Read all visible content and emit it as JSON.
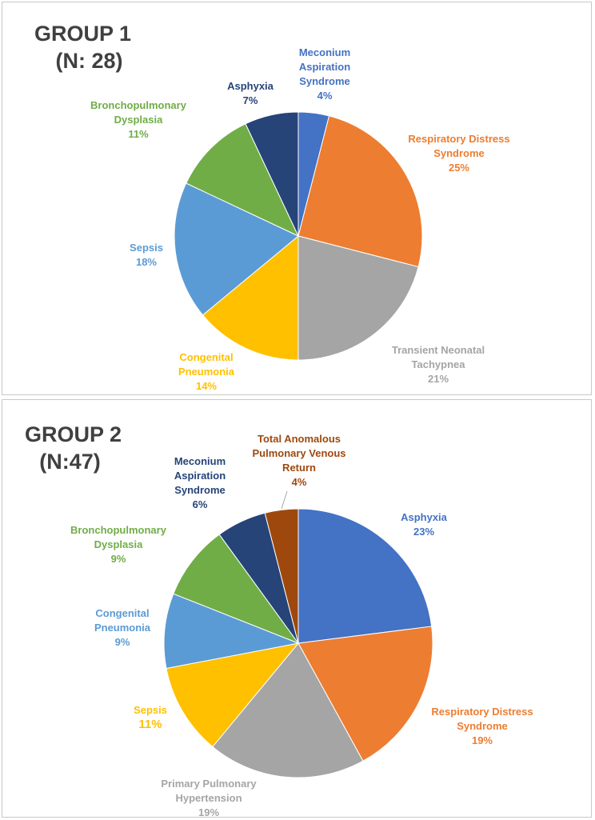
{
  "chart_data": [
    {
      "type": "pie",
      "title": "GROUP 1",
      "subtitle": "(N: 28)",
      "slices": [
        {
          "label_lines": [
            "Meconium",
            "Aspiration",
            "Syndrome"
          ],
          "pct_label": "4%",
          "value": 4,
          "color": "#4472C4"
        },
        {
          "label_lines": [
            "Respiratory Distress",
            "Syndrome"
          ],
          "pct_label": "25%",
          "value": 25,
          "color": "#ED7D31"
        },
        {
          "label_lines": [
            "Transient Neonatal",
            "Tachypnea"
          ],
          "pct_label": "21%",
          "value": 21,
          "color": "#A5A5A5"
        },
        {
          "label_lines": [
            "Congenital",
            "Pneumonia"
          ],
          "pct_label": "14%",
          "value": 14,
          "color": "#FFC000"
        },
        {
          "label_lines": [
            "Sepsis"
          ],
          "pct_label": "18%",
          "value": 18,
          "color": "#5B9BD5"
        },
        {
          "label_lines": [
            "Bronchopulmonary",
            "Dysplasia"
          ],
          "pct_label": "11%",
          "value": 11,
          "color": "#70AD47"
        },
        {
          "label_lines": [
            "Asphyxia"
          ],
          "pct_label": "7%",
          "value": 7,
          "color": "#264478"
        }
      ]
    },
    {
      "type": "pie",
      "title": "GROUP 2",
      "subtitle": "(N:47)",
      "slices": [
        {
          "label_lines": [
            "Asphyxia"
          ],
          "pct_label": "23%",
          "value": 23,
          "color": "#4472C4"
        },
        {
          "label_lines": [
            "Respiratory Distress",
            "Syndrome"
          ],
          "pct_label": "19%",
          "value": 19,
          "color": "#ED7D31"
        },
        {
          "label_lines": [
            "Primary Pulmonary",
            "Hypertension"
          ],
          "pct_label": "19%",
          "value": 19,
          "color": "#A5A5A5"
        },
        {
          "label_lines": [
            "Sepsis"
          ],
          "pct_label": "11%",
          "value": 11,
          "color": "#FFC000"
        },
        {
          "label_lines": [
            "Congenital",
            "Pneumonia"
          ],
          "pct_label": "9%",
          "value": 9,
          "color": "#5B9BD5"
        },
        {
          "label_lines": [
            "Bronchopulmonary",
            "Dysplasia"
          ],
          "pct_label": "9%",
          "value": 9,
          "color": "#70AD47"
        },
        {
          "label_lines": [
            "Meconium",
            "Aspiration",
            "Syndrome"
          ],
          "pct_label": "6%",
          "value": 6,
          "color": "#264478"
        },
        {
          "label_lines": [
            "Total Anomalous",
            "Pulmonary Venous",
            "Return"
          ],
          "pct_label": "4%",
          "value": 4,
          "color": "#9E480E"
        }
      ]
    }
  ]
}
